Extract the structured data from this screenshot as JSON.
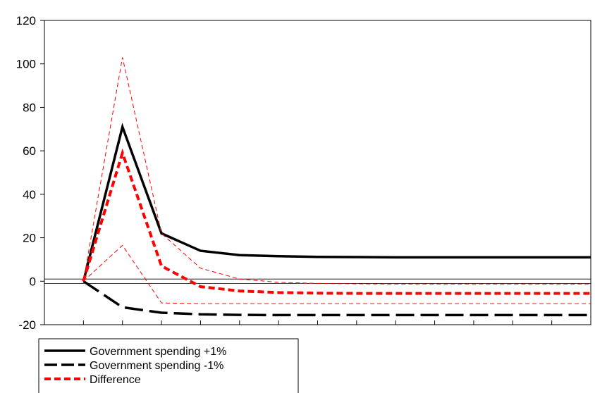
{
  "chart_data": {
    "type": "line",
    "x": [
      1,
      2,
      3,
      4,
      5,
      6,
      7,
      8,
      9,
      10,
      11,
      12,
      13,
      14
    ],
    "xlim": [
      0,
      14
    ],
    "ylim": [
      -20,
      120
    ],
    "y_ticks": [
      120,
      100,
      80,
      60,
      40,
      20,
      0,
      -20
    ],
    "series": [
      {
        "name": "Government spending +1%",
        "color": "#000000",
        "style": "solid",
        "values": [
          0,
          71,
          22,
          14,
          12,
          11.5,
          11.2,
          11.1,
          11,
          11,
          11,
          11,
          11,
          11
        ]
      },
      {
        "name": "Government spending -1%",
        "color": "#000000",
        "style": "long-dash",
        "values": [
          0,
          -12,
          -14.5,
          -15.2,
          -15.5,
          -15.6,
          -15.6,
          -15.6,
          -15.6,
          -15.6,
          -15.6,
          -15.6,
          -15.6,
          -15.6
        ]
      },
      {
        "name": "Difference",
        "color": "#ff0000",
        "style": "short-dash",
        "values": [
          0,
          59,
          7,
          -2.5,
          -4.5,
          -5.2,
          -5.5,
          -5.6,
          -5.6,
          -5.6,
          -5.6,
          -5.6,
          -5.6,
          -5.6
        ]
      },
      {
        "name": "",
        "color": "#ff0000",
        "style": "thin-dash",
        "values": [
          0,
          103,
          22,
          6,
          1,
          -0.5,
          -1,
          -1.2,
          -1.3,
          -1.3,
          -1.3,
          -1.3,
          -1.3,
          -1.3
        ]
      },
      {
        "name": "",
        "color": "#ff0000",
        "style": "thin-dash",
        "values": [
          0,
          16.5,
          -10,
          -10.3,
          -10.3,
          -10.3,
          -10.3,
          -10.3,
          -10.3,
          -10.3,
          -10.3,
          -10.3,
          -10.3,
          -10.3
        ]
      }
    ],
    "zero_band": [
      -1,
      1
    ],
    "legend": [
      "Government spending +1%",
      "Government spending -1%",
      "Difference"
    ],
    "legend_position": "bottom-left"
  }
}
